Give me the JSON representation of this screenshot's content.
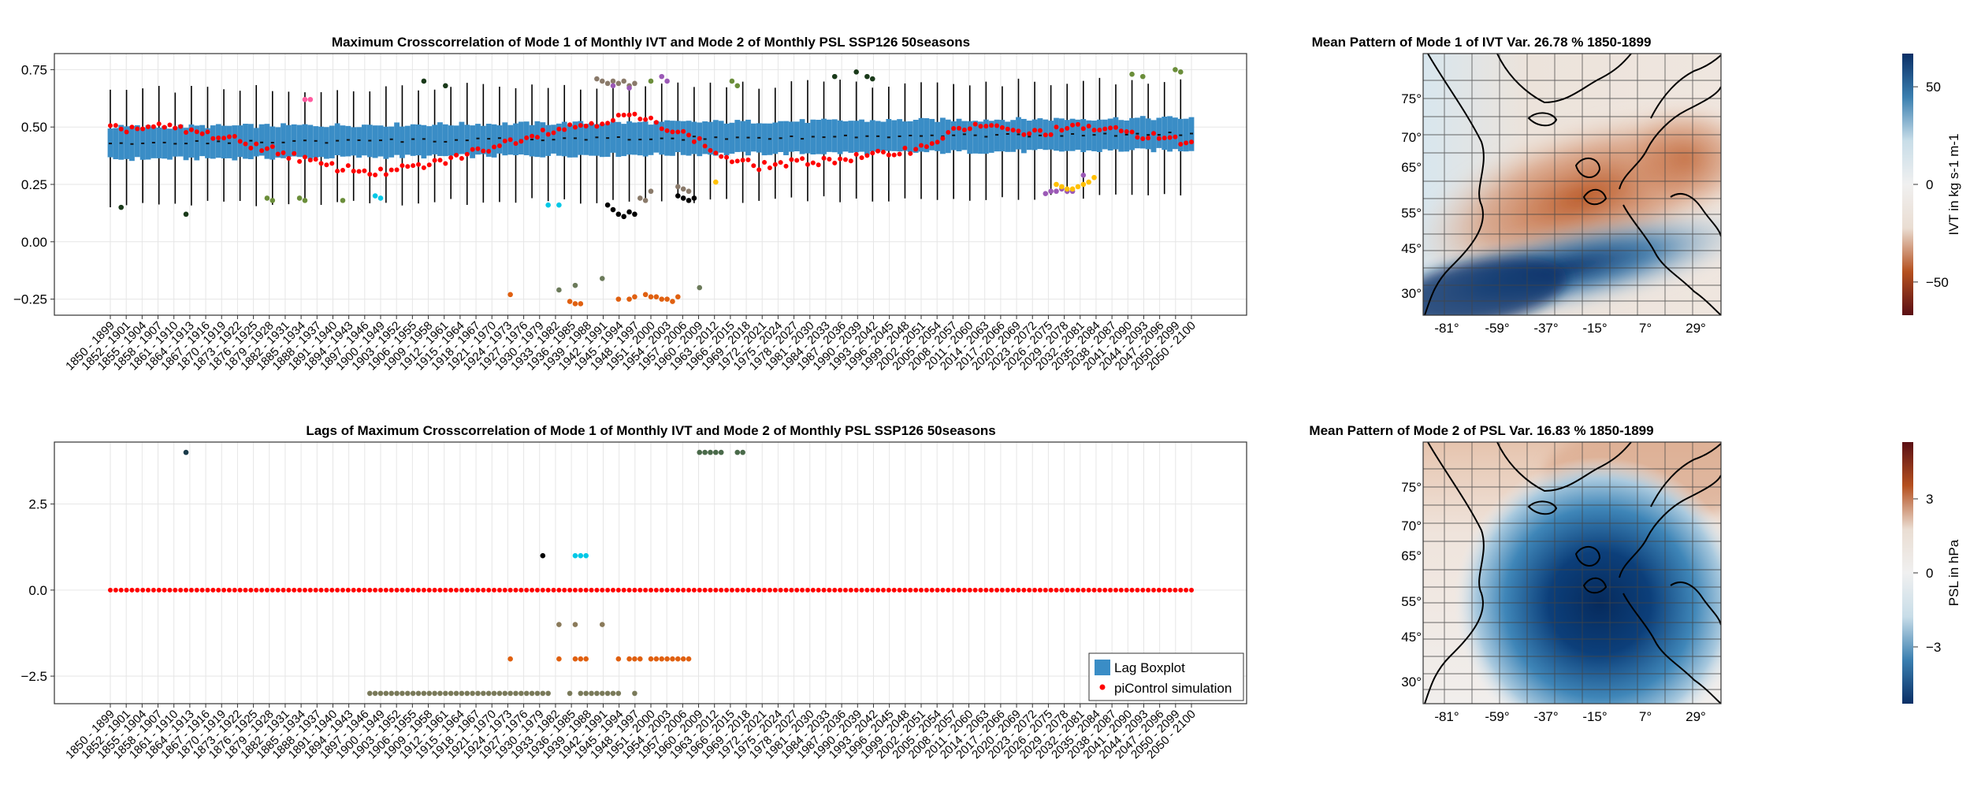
{
  "chart_data": [
    {
      "type": "box-scatter",
      "title": "Maximum  Crosscorrelation of Mode 1 of Monthly IVT and Mode 2 of Monthly PSL SSP126 50seasons",
      "x_start_year": 1850,
      "x_end_year": 2050,
      "window": 50,
      "x_tick_labels": [
        "1850 - 1899",
        "1852 - 1901",
        "1855 - 1904",
        "1858 - 1907",
        "1861 - 1910",
        "1864 - 1913",
        "1867 - 1916",
        "1870 - 1919",
        "1873 - 1922",
        "1876 - 1925",
        "1879 - 1928",
        "1882 - 1931",
        "1885 - 1934",
        "1888 - 1937",
        "1891 - 1940",
        "1894 - 1943",
        "1897 - 1946",
        "1900 - 1949",
        "1903 - 1952",
        "1906 - 1955",
        "1909 - 1958",
        "1912 - 1961",
        "1915 - 1964",
        "1918 - 1967",
        "1921 - 1970",
        "1924 - 1973",
        "1927 - 1976",
        "1930 - 1979",
        "1933 - 1982",
        "1936 - 1985",
        "1939 - 1988",
        "1942 - 1991",
        "1945 - 1994",
        "1948 - 1997",
        "1951 - 2000",
        "1954 - 2003",
        "1957 - 2006",
        "1960 - 2009",
        "1963 - 2012",
        "1966 - 2015",
        "1969 - 2018",
        "1972 - 2021",
        "1975 - 2024",
        "1978 - 2027",
        "1981 - 2030",
        "1984 - 2033",
        "1987 - 2036",
        "1990 - 2039",
        "1993 - 2042",
        "1996 - 2045",
        "1999 - 2048",
        "2002 - 2051",
        "2005 - 2054",
        "2008 - 2057",
        "2011 - 2060",
        "2014 - 2063",
        "2017 - 2066",
        "2020 - 2069",
        "2023 - 2072",
        "2026 - 2075",
        "2029 - 2078",
        "2032 - 2081",
        "2035 - 2084",
        "2038 - 2087",
        "2041 - 2090",
        "2044 - 2093",
        "2047 - 2096",
        "2050 - 2099",
        "2050 - 2100"
      ],
      "y_ticks": [
        -0.25,
        0.0,
        0.25,
        0.5,
        0.75
      ],
      "y_tick_labels": [
        "−0.25",
        "0.00",
        "0.25",
        "0.50",
        "0.75"
      ],
      "ylim": [
        -0.32,
        0.82
      ],
      "box_color": "#3a8dc6",
      "whisker_color": "#000000",
      "box_summary": {
        "whisker_low": 0.16,
        "q1": 0.36,
        "median": 0.43,
        "q3": 0.5,
        "whisker_high": 0.66,
        "median_trend_end": 0.47
      },
      "series": [
        {
          "name": "piControl simulation",
          "color": "#ff0000",
          "key_points": [
            [
              1850,
              0.49
            ],
            [
              1860,
              0.5
            ],
            [
              1870,
              0.46
            ],
            [
              1880,
              0.4
            ],
            [
              1890,
              0.33
            ],
            [
              1900,
              0.3
            ],
            [
              1910,
              0.34
            ],
            [
              1920,
              0.41
            ],
            [
              1930,
              0.48
            ],
            [
              1940,
              0.52
            ],
            [
              1946,
              0.55
            ],
            [
              1952,
              0.51
            ],
            [
              1958,
              0.45
            ],
            [
              1964,
              0.36
            ],
            [
              1970,
              0.33
            ],
            [
              1980,
              0.35
            ],
            [
              1990,
              0.37
            ],
            [
              2000,
              0.41
            ],
            [
              2005,
              0.47
            ],
            [
              2010,
              0.51
            ],
            [
              2020,
              0.47
            ],
            [
              2030,
              0.5
            ],
            [
              2040,
              0.47
            ],
            [
              2050,
              0.43
            ]
          ]
        }
      ],
      "scatter_groups": [
        {
          "color": "#000000",
          "points": [
            [
              1942,
              0.16
            ],
            [
              1943,
              0.14
            ],
            [
              1944,
              0.12
            ],
            [
              1945,
              0.11
            ],
            [
              1946,
              0.13
            ],
            [
              1947,
              0.12
            ],
            [
              1955,
              0.2
            ],
            [
              1956,
              0.19
            ],
            [
              1957,
              0.18
            ],
            [
              1958,
              0.19
            ]
          ]
        },
        {
          "color": "#1a3a1a",
          "points": [
            [
              1852,
              0.15
            ],
            [
              1864,
              0.12
            ],
            [
              1908,
              0.7
            ],
            [
              1912,
              0.68
            ],
            [
              1984,
              0.72
            ],
            [
              1988,
              0.74
            ],
            [
              1990,
              0.72
            ],
            [
              1991,
              0.71
            ]
          ]
        },
        {
          "color": "#6b8e3a",
          "points": [
            [
              1879,
              0.19
            ],
            [
              1880,
              0.18
            ],
            [
              1885,
              0.19
            ],
            [
              1886,
              0.18
            ],
            [
              1893,
              0.18
            ],
            [
              1950,
              0.7
            ],
            [
              1965,
              0.7
            ],
            [
              1966,
              0.68
            ],
            [
              2039,
              0.73
            ],
            [
              2041,
              0.72
            ],
            [
              2047,
              0.75
            ],
            [
              2048,
              0.74
            ]
          ]
        },
        {
          "color": "#8a7a6a",
          "points": [
            [
              1940,
              0.71
            ],
            [
              1941,
              0.7
            ],
            [
              1942,
              0.69
            ],
            [
              1943,
              0.7
            ],
            [
              1944,
              0.69
            ],
            [
              1945,
              0.7
            ],
            [
              1946,
              0.68
            ],
            [
              1947,
              0.69
            ],
            [
              1948,
              0.19
            ],
            [
              1949,
              0.18
            ],
            [
              1950,
              0.22
            ],
            [
              1955,
              0.24
            ],
            [
              1956,
              0.23
            ],
            [
              1957,
              0.22
            ]
          ]
        },
        {
          "color": "#9b59b6",
          "points": [
            [
              1943,
              0.68
            ],
            [
              1946,
              0.67
            ],
            [
              1952,
              0.72
            ],
            [
              1953,
              0.7
            ],
            [
              2023,
              0.21
            ],
            [
              2024,
              0.22
            ],
            [
              2025,
              0.22
            ],
            [
              2026,
              0.23
            ],
            [
              2027,
              0.22
            ],
            [
              2028,
              0.22
            ],
            [
              2030,
              0.29
            ]
          ]
        },
        {
          "color": "#ff5ca0",
          "points": [
            [
              1886,
              0.62
            ],
            [
              1887,
              0.62
            ]
          ]
        },
        {
          "color": "#00c8e6",
          "points": [
            [
              1899,
              0.2
            ],
            [
              1900,
              0.19
            ],
            [
              1931,
              0.16
            ],
            [
              1933,
              0.16
            ]
          ]
        },
        {
          "color": "#ffc000",
          "points": [
            [
              1962,
              0.26
            ],
            [
              2025,
              0.25
            ],
            [
              2026,
              0.24
            ],
            [
              2027,
              0.23
            ],
            [
              2028,
              0.23
            ],
            [
              2029,
              0.24
            ],
            [
              2030,
              0.25
            ],
            [
              2031,
              0.26
            ],
            [
              2032,
              0.28
            ]
          ]
        },
        {
          "color": "#e06010",
          "points": [
            [
              1924,
              -0.23
            ],
            [
              1935,
              -0.26
            ],
            [
              1936,
              -0.27
            ],
            [
              1937,
              -0.27
            ],
            [
              1944,
              -0.25
            ],
            [
              1946,
              -0.25
            ],
            [
              1947,
              -0.24
            ],
            [
              1949,
              -0.23
            ],
            [
              1950,
              -0.24
            ],
            [
              1951,
              -0.24
            ],
            [
              1952,
              -0.25
            ],
            [
              1953,
              -0.25
            ],
            [
              1954,
              -0.26
            ],
            [
              1955,
              -0.24
            ]
          ]
        },
        {
          "color": "#6b7a5a",
          "points": [
            [
              1933,
              -0.21
            ],
            [
              1936,
              -0.19
            ],
            [
              1941,
              -0.16
            ],
            [
              1959,
              -0.2
            ]
          ]
        }
      ]
    },
    {
      "type": "scatter",
      "title": "Lags of Maximum  Crosscorrelation of Mode 1 of Monthly IVT and Mode 2 of Monthly PSL SSP126 50seasons",
      "y_ticks": [
        -2.5,
        0.0,
        2.5
      ],
      "y_tick_labels": [
        "−2.5",
        "0.0",
        "2.5"
      ],
      "ylim": [
        -3.3,
        4.3
      ],
      "legend_position": "bottom-right",
      "legend": [
        {
          "label": "Lag Boxplot",
          "kind": "box",
          "color": "#3a8dc6"
        },
        {
          "label": "piControl simulation",
          "kind": "dot",
          "color": "#ff0000"
        }
      ],
      "baseline_lag": 0,
      "scatter_groups": [
        {
          "color": "#1a3a4a",
          "points": [
            [
              1864,
              4
            ]
          ]
        },
        {
          "color": "#4a6a4a",
          "points": [
            [
              1959,
              4
            ],
            [
              1960,
              4
            ],
            [
              1961,
              4
            ],
            [
              1962,
              4
            ],
            [
              1963,
              4
            ],
            [
              1966,
              4
            ],
            [
              1967,
              4
            ]
          ]
        },
        {
          "color": "#000000",
          "points": [
            [
              1930,
              1
            ]
          ]
        },
        {
          "color": "#00c8e6",
          "points": [
            [
              1936,
              1
            ],
            [
              1937,
              1
            ],
            [
              1938,
              1
            ]
          ]
        },
        {
          "color": "#e06010",
          "points": [
            [
              1924,
              -2
            ],
            [
              1933,
              -2
            ],
            [
              1936,
              -2
            ],
            [
              1937,
              -2
            ],
            [
              1938,
              -2
            ],
            [
              1944,
              -2
            ],
            [
              1946,
              -2
            ],
            [
              1947,
              -2
            ],
            [
              1948,
              -2
            ],
            [
              1950,
              -2
            ],
            [
              1951,
              -2
            ],
            [
              1952,
              -2
            ],
            [
              1953,
              -2
            ],
            [
              1954,
              -2
            ],
            [
              1955,
              -2
            ],
            [
              1956,
              -2
            ],
            [
              1957,
              -2
            ]
          ]
        },
        {
          "color": "#8a7a5a",
          "points": [
            [
              1933,
              -1
            ],
            [
              1936,
              -1
            ],
            [
              1941,
              -1
            ]
          ]
        },
        {
          "color": "#7a7a5a",
          "points": [
            [
              1898,
              -3
            ],
            [
              1899,
              -3
            ],
            [
              1900,
              -3
            ],
            [
              1901,
              -3
            ],
            [
              1902,
              -3
            ],
            [
              1903,
              -3
            ],
            [
              1904,
              -3
            ],
            [
              1905,
              -3
            ],
            [
              1906,
              -3
            ],
            [
              1907,
              -3
            ],
            [
              1908,
              -3
            ],
            [
              1909,
              -3
            ],
            [
              1910,
              -3
            ],
            [
              1911,
              -3
            ],
            [
              1912,
              -3
            ],
            [
              1913,
              -3
            ],
            [
              1914,
              -3
            ],
            [
              1915,
              -3
            ],
            [
              1916,
              -3
            ],
            [
              1917,
              -3
            ],
            [
              1918,
              -3
            ],
            [
              1919,
              -3
            ],
            [
              1920,
              -3
            ],
            [
              1921,
              -3
            ],
            [
              1922,
              -3
            ],
            [
              1923,
              -3
            ],
            [
              1924,
              -3
            ],
            [
              1925,
              -3
            ],
            [
              1926,
              -3
            ],
            [
              1927,
              -3
            ],
            [
              1928,
              -3
            ],
            [
              1929,
              -3
            ],
            [
              1930,
              -3
            ],
            [
              1931,
              -3
            ],
            [
              1935,
              -3
            ],
            [
              1937,
              -3
            ],
            [
              1938,
              -3
            ],
            [
              1939,
              -3
            ],
            [
              1940,
              -3
            ],
            [
              1941,
              -3
            ],
            [
              1942,
              -3
            ],
            [
              1943,
              -3
            ],
            [
              1944,
              -3
            ],
            [
              1947,
              -3
            ]
          ]
        }
      ]
    },
    {
      "type": "heatmap",
      "title": "Mean Pattern of Mode 1 of IVT Var. 26.78 % 1850-1899",
      "x_tick_labels": [
        "-81°",
        "-59°",
        "-37°",
        "-15°",
        "7°",
        "29°"
      ],
      "y_tick_labels": [
        "30°",
        "45°",
        "55°",
        "65°",
        "70°",
        "75°"
      ],
      "colorbar_label": "IVT in kg s-1 m-1",
      "colorbar_ticks": [
        "−50",
        "0",
        "50"
      ],
      "colorbar_colors": [
        "#5a0f14",
        "#b5501f",
        "#eaddd2",
        "#f0f0f0",
        "#c8dde8",
        "#3a7fb0",
        "#0a2f66"
      ]
    },
    {
      "type": "heatmap",
      "title": "Mean Pattern of Mode 2 of PSL Var. 16.83 % 1850-1899",
      "x_tick_labels": [
        "-81°",
        "-59°",
        "-37°",
        "-15°",
        "7°",
        "29°"
      ],
      "y_tick_labels": [
        "30°",
        "45°",
        "55°",
        "65°",
        "70°",
        "75°"
      ],
      "colorbar_label": "PSL in hPa",
      "colorbar_ticks": [
        "−3",
        "0",
        "3"
      ],
      "colorbar_colors": [
        "#0a2f66",
        "#3a7fb0",
        "#c8dde8",
        "#f0f0f0",
        "#eaddd2",
        "#b5501f",
        "#5a0f14"
      ]
    }
  ]
}
